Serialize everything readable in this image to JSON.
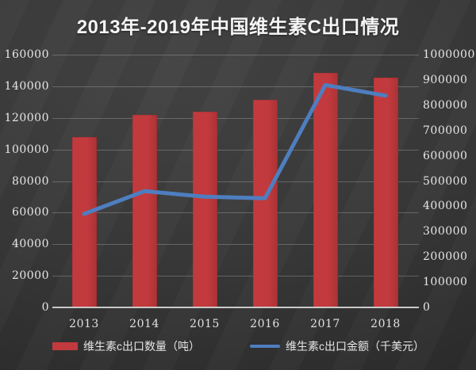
{
  "chart_data": {
    "type": "bar+line combo",
    "title": "2013年-2019年中国维生素C出口情况",
    "categories": [
      "2013",
      "2014",
      "2015",
      "2016",
      "2017",
      "2018"
    ],
    "series": [
      {
        "name": "维生素c出口数量（吨）",
        "type": "bar",
        "axis": "left",
        "color": "#c23a3d",
        "values": [
          108000,
          121800,
          123800,
          131300,
          148500,
          145500
        ]
      },
      {
        "name": "维生素c出口金额（千美元）",
        "type": "line",
        "axis": "right",
        "color": "#4e7ec0",
        "values": [
          370000,
          460000,
          438000,
          432000,
          880000,
          838000
        ]
      }
    ],
    "left_axis": {
      "min": 0,
      "max": 160000,
      "step": 20000,
      "tick_labels": [
        "0",
        "20000",
        "40000",
        "60000",
        "80000",
        "100000",
        "120000",
        "140000",
        "160000"
      ]
    },
    "right_axis": {
      "min": 0,
      "max": 1000000,
      "step": 100000,
      "tick_labels": [
        "0",
        "100000",
        "200000",
        "300000",
        "400000",
        "500000",
        "600000",
        "700000",
        "800000",
        "900000",
        "1000000"
      ]
    },
    "grid": "horizontal, primary axis",
    "legend_position": "bottom",
    "background": "dark gray gradient",
    "colors": {
      "bar": "#c23a3d",
      "line": "#4e7ec0",
      "grid": "rgba(255,255,255,0.22)",
      "axis_line": "#c9c9c9",
      "text": "#e6e6e6",
      "title": "#f5f5f5"
    }
  }
}
